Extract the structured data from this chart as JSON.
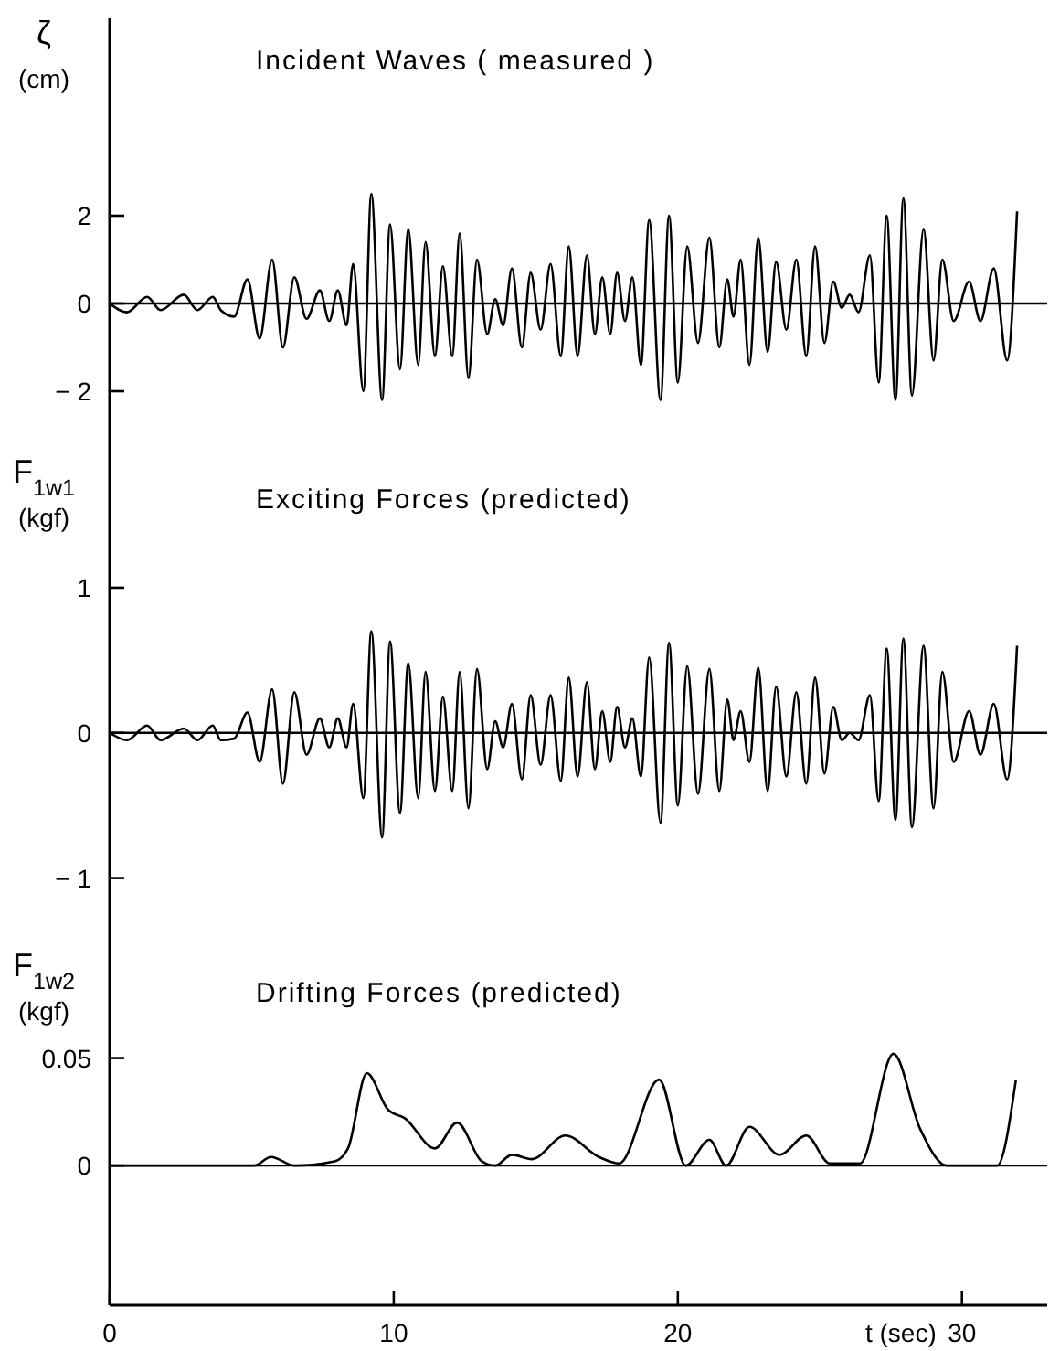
{
  "chart_data": [
    {
      "type": "line",
      "title": "Incident Waves ( measured )",
      "ylabel": "ζ (cm)",
      "xlim": [
        0,
        33
      ],
      "ylim": [
        -3.5,
        6.5
      ],
      "yticks": [
        {
          "value": -2,
          "label": "− 2"
        },
        0,
        2
      ],
      "tick_labels": "y",
      "ref_lines": [
        {
          "axis": "y",
          "value": 0
        }
      ],
      "x": [
        0,
        0.61,
        1.32,
        1.79,
        2.61,
        3.09,
        3.63,
        3.91,
        4.38,
        4.85,
        5.28,
        5.72,
        6.1,
        6.5,
        6.93,
        7.4,
        7.73,
        8.03,
        8.34,
        8.57,
        8.93,
        9.21,
        9.59,
        9.87,
        10.22,
        10.51,
        10.86,
        11.12,
        11.45,
        11.73,
        12.06,
        12.32,
        12.63,
        12.93,
        13.29,
        13.57,
        13.85,
        14.16,
        14.51,
        14.82,
        15.17,
        15.52,
        15.88,
        16.16,
        16.47,
        16.8,
        17.08,
        17.34,
        17.62,
        17.86,
        18.14,
        18.4,
        18.7,
        18.99,
        19.39,
        19.69,
        20.0,
        20.33,
        20.71,
        21.11,
        21.46,
        21.74,
        21.96,
        22.21,
        22.52,
        22.83,
        23.16,
        23.46,
        23.82,
        24.17,
        24.52,
        24.83,
        25.16,
        25.47,
        25.77,
        26.05,
        26.36,
        26.76,
        27.07,
        27.35,
        27.66,
        27.94,
        28.24,
        28.65,
        29.0,
        29.31,
        29.71,
        30.25,
        30.65,
        31.12,
        31.59,
        31.94
      ],
      "series": [
        {
          "color": "#000000",
          "values": [
            0,
            -0.2,
            0.15,
            -0.15,
            0.2,
            -0.15,
            0.15,
            -0.15,
            -0.3,
            0.55,
            -0.8,
            1.0,
            -1.0,
            0.6,
            -0.35,
            0.3,
            -0.4,
            0.3,
            -0.5,
            0.9,
            -2.0,
            2.5,
            -2.2,
            1.8,
            -1.5,
            1.7,
            -1.4,
            1.4,
            -1.2,
            0.85,
            -1.2,
            1.6,
            -1.7,
            1.0,
            -0.7,
            0.1,
            -0.5,
            0.8,
            -1.0,
            0.7,
            -0.6,
            0.9,
            -1.2,
            1.3,
            -1.2,
            1.1,
            -0.7,
            0.6,
            -0.7,
            0.7,
            -0.4,
            0.6,
            -1.4,
            1.9,
            -2.2,
            2.0,
            -1.8,
            1.3,
            -0.9,
            1.5,
            -1.0,
            0.55,
            -0.3,
            1.0,
            -1.4,
            1.5,
            -1.1,
            0.95,
            -0.6,
            1.0,
            -1.2,
            1.3,
            -0.9,
            0.5,
            -0.1,
            0.2,
            -0.2,
            1.1,
            -1.8,
            2.0,
            -2.2,
            2.4,
            -2.1,
            1.7,
            -1.3,
            1.0,
            -0.4,
            0.5,
            -0.4,
            0.8,
            -1.3,
            2.1
          ]
        }
      ]
    },
    {
      "type": "line",
      "title": "Exciting Forces (predicted)",
      "ylabel": "F$_{1w1}$ (kgf)",
      "xlim": [
        0,
        33
      ],
      "ylim": [
        -1.5,
        1.9
      ],
      "yticks": [
        {
          "value": -1,
          "label": "− 1"
        },
        0,
        1
      ],
      "tick_labels": "y",
      "ref_lines": [
        {
          "axis": "y",
          "value": 0
        }
      ],
      "x": [
        0,
        0.61,
        1.32,
        1.79,
        2.61,
        3.09,
        3.63,
        3.91,
        4.38,
        4.85,
        5.28,
        5.72,
        6.1,
        6.5,
        6.93,
        7.4,
        7.73,
        8.03,
        8.34,
        8.57,
        8.93,
        9.21,
        9.59,
        9.87,
        10.22,
        10.51,
        10.86,
        11.12,
        11.45,
        11.73,
        12.06,
        12.32,
        12.63,
        12.93,
        13.29,
        13.57,
        13.85,
        14.16,
        14.51,
        14.82,
        15.17,
        15.52,
        15.88,
        16.16,
        16.47,
        16.8,
        17.08,
        17.34,
        17.62,
        17.86,
        18.14,
        18.4,
        18.7,
        18.99,
        19.39,
        19.69,
        20.0,
        20.33,
        20.71,
        21.11,
        21.46,
        21.74,
        21.96,
        22.21,
        22.52,
        22.83,
        23.16,
        23.46,
        23.82,
        24.17,
        24.52,
        24.83,
        25.16,
        25.47,
        25.77,
        26.05,
        26.36,
        26.76,
        27.07,
        27.35,
        27.66,
        27.94,
        28.24,
        28.65,
        29.0,
        29.31,
        29.71,
        30.25,
        30.65,
        31.12,
        31.59,
        31.94
      ],
      "series": [
        {
          "color": "#000000",
          "values": [
            0,
            -0.05,
            0.05,
            -0.05,
            0.03,
            -0.05,
            0.05,
            -0.05,
            -0.04,
            0.14,
            -0.2,
            0.3,
            -0.35,
            0.28,
            -0.15,
            0.1,
            -0.1,
            0.1,
            -0.1,
            0.2,
            -0.45,
            0.7,
            -0.72,
            0.63,
            -0.55,
            0.48,
            -0.45,
            0.42,
            -0.4,
            0.25,
            -0.4,
            0.42,
            -0.52,
            0.44,
            -0.25,
            0.08,
            -0.1,
            0.2,
            -0.32,
            0.26,
            -0.22,
            0.26,
            -0.33,
            0.38,
            -0.3,
            0.35,
            -0.25,
            0.15,
            -0.2,
            0.18,
            -0.1,
            0.1,
            -0.3,
            0.52,
            -0.62,
            0.62,
            -0.5,
            0.46,
            -0.42,
            0.44,
            -0.4,
            0.23,
            -0.05,
            0.15,
            -0.2,
            0.45,
            -0.4,
            0.32,
            -0.3,
            0.28,
            -0.35,
            0.38,
            -0.28,
            0.18,
            -0.05,
            0.0,
            -0.05,
            0.26,
            -0.47,
            0.58,
            -0.6,
            0.65,
            -0.65,
            0.6,
            -0.52,
            0.42,
            -0.2,
            0.15,
            -0.15,
            0.2,
            -0.32,
            0.6
          ]
        }
      ]
    },
    {
      "type": "line",
      "title": "Drifting Forces (predicted)",
      "ylabel": "F$_{1w2}$ (kgf)",
      "xlabel": "t (sec)",
      "xlim": [
        0,
        33
      ],
      "xticks": [
        0,
        10,
        20,
        30
      ],
      "ylim": [
        -0.065,
        0.1
      ],
      "yticks": [
        0,
        0.05
      ],
      "ref_lines": [
        {
          "axis": "y",
          "value": 0
        }
      ],
      "x": [
        0,
        5.09,
        5.68,
        6.5,
        7.92,
        8.39,
        9.05,
        9.8,
        10.39,
        11.45,
        12.23,
        13.1,
        13.57,
        14.16,
        14.86,
        16.04,
        17.22,
        17.93,
        19.34,
        20.28,
        21.11,
        21.7,
        22.52,
        23.58,
        24.52,
        25.35,
        26.41,
        27.59,
        28.53,
        29.47,
        31.24,
        31.9
      ],
      "series": [
        {
          "color": "#000000",
          "values": [
            0,
            0,
            0.004,
            0,
            0.002,
            0.008,
            0.043,
            0.026,
            0.022,
            0.008,
            0.02,
            0.002,
            0,
            0.005,
            0.003,
            0.014,
            0.004,
            0.001,
            0.04,
            0,
            0.012,
            0,
            0.018,
            0.005,
            0.014,
            0.001,
            0.001,
            0.052,
            0.017,
            0,
            0,
            0.04
          ]
        }
      ]
    }
  ]
}
